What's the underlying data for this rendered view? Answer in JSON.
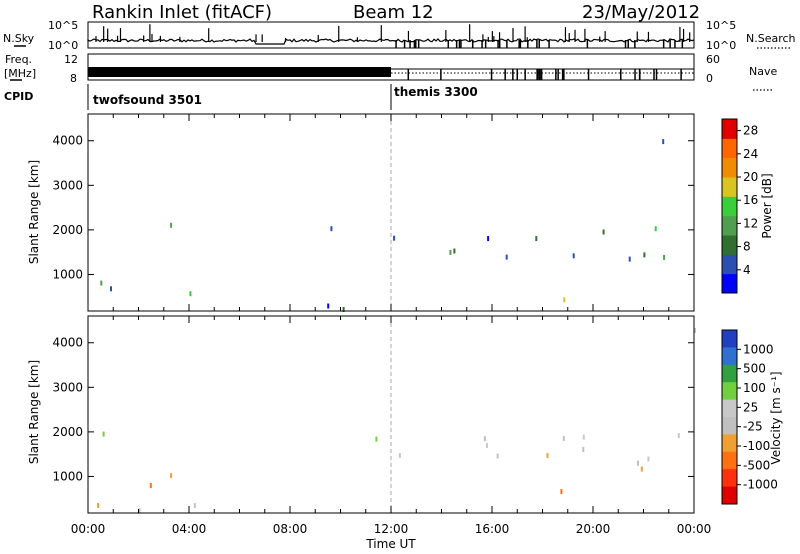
{
  "header": {
    "title": "Rankin Inlet (fitACF)",
    "beam": "Beam 12",
    "date": "23/May/2012"
  },
  "top_panels": {
    "nsky_label": "N.Sky",
    "nsky_ticks": [
      "10^5",
      "10^0"
    ],
    "nsearch_label": "N.Search",
    "nsearch_ticks": [
      "10^5",
      "10^0"
    ],
    "freq_label_1": "Freq.",
    "freq_label_2": "[MHz]",
    "freq_ticks": [
      "12",
      "8"
    ],
    "nave_label": "Nave",
    "nave_ticks": [
      "60",
      "0"
    ],
    "cpid_label": "CPID",
    "cpid_segments": [
      {
        "name": "twofsound 3501",
        "start_hour": 0,
        "end_hour": 12
      },
      {
        "name": "themis 3300",
        "start_hour": 12,
        "end_hour": 24
      }
    ]
  },
  "colors": {
    "power_scale": [
      "#0000ff",
      "#2a4fb0",
      "#2f6f2f",
      "#4f9f4f",
      "#38d038",
      "#d9c420",
      "#f08c00",
      "#ff6600",
      "#e00000"
    ],
    "velocity_scale": [
      "#2040c0",
      "#3070d0",
      "#30a040",
      "#70d040",
      "#c8c8c8",
      "#c0c0c0",
      "#f0a030",
      "#ff7010",
      "#ff3010",
      "#e00000"
    ],
    "gray": "#c8c8c8"
  },
  "chart_data": [
    {
      "type": "heatmap",
      "name": "power",
      "ylabel": "Slant Range [km]",
      "xlabel": "",
      "ylim": [
        180,
        4600
      ],
      "yticks": [
        "1000",
        "2000",
        "3000",
        "4000"
      ],
      "ytick_values": [
        1000,
        2000,
        3000,
        4000
      ],
      "xlim_hours": [
        0,
        24
      ],
      "colorbar_label": "Power [dB]",
      "colorbar_ticks": [
        "4",
        "8",
        "12",
        "16",
        "20",
        "24",
        "28"
      ],
      "colorbar_tick_values": [
        4,
        8,
        12,
        16,
        20,
        24,
        28
      ],
      "colorbar_range": [
        0,
        30
      ]
    },
    {
      "type": "heatmap",
      "name": "velocity",
      "ylabel": "Slant Range [km]",
      "xlabel": "Time UT",
      "ylim": [
        180,
        4600
      ],
      "yticks": [
        "1000",
        "2000",
        "3000",
        "4000"
      ],
      "ytick_values": [
        1000,
        2000,
        3000,
        4000
      ],
      "xticks": [
        "00:00",
        "04:00",
        "08:00",
        "12:00",
        "16:00",
        "20:00",
        "00:00"
      ],
      "xtick_hours": [
        0,
        4,
        8,
        12,
        16,
        20,
        24
      ],
      "colorbar_label": "Velocity [m s⁻¹]",
      "colorbar_ticks": [
        "1000",
        "500",
        "100",
        "25",
        "-25",
        "-100",
        "-500",
        "-1000"
      ]
    }
  ]
}
